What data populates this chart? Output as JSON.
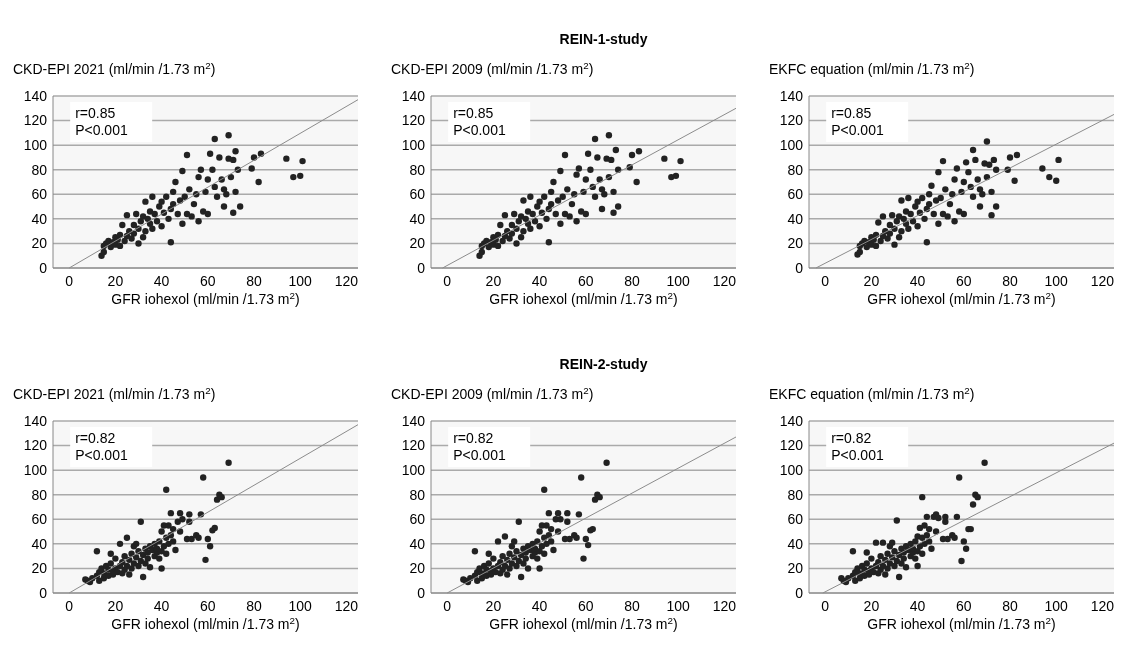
{
  "chart_data": [
    {
      "type": "scatter",
      "ylabel": "CKD-EPI 2021 (ml/min /1.73 m$^{2}$)",
      "xlabel": "GFR iohexol (ml/min /1.73 m$^{2}$)",
      "xlim": [
        -7,
        125
      ],
      "ylim": [
        0,
        140
      ],
      "xticks": [
        0,
        20,
        40,
        60,
        80,
        100,
        120
      ],
      "yticks": [
        0,
        20,
        40,
        60,
        80,
        100,
        120,
        140
      ],
      "grid": "y",
      "annotations": [
        "r=0.85",
        "P<0.001"
      ],
      "series": [
        {
          "type": "scatter",
          "marker": "circle",
          "color": "#222222",
          "x": [
            14,
            15,
            15,
            16,
            17,
            18,
            19,
            20,
            20,
            21,
            22,
            22,
            23,
            24,
            25,
            25,
            26,
            27,
            28,
            28,
            29,
            30,
            30,
            31,
            32,
            32,
            33,
            33,
            34,
            35,
            35,
            36,
            36,
            37,
            38,
            39,
            40,
            40,
            41,
            42,
            43,
            44,
            44,
            45,
            45,
            46,
            47,
            48,
            49,
            49,
            50,
            51,
            51,
            52,
            53,
            54,
            55,
            56,
            56,
            57,
            58,
            59,
            60,
            60,
            61,
            62,
            63,
            63,
            64,
            65,
            66,
            67,
            67,
            68,
            69,
            69,
            70,
            71,
            71,
            72,
            72,
            73,
            74,
            79,
            80,
            82,
            83,
            94,
            97,
            100,
            101
          ],
          "values": [
            10,
            13,
            18,
            20,
            22,
            17,
            21,
            19,
            25,
            23,
            18,
            27,
            35,
            22,
            43,
            26,
            30,
            24,
            35,
            28,
            44,
            32,
            20,
            38,
            25,
            42,
            30,
            54,
            40,
            36,
            46,
            32,
            58,
            44,
            38,
            50,
            34,
            54,
            45,
            58,
            40,
            48,
            21,
            62,
            52,
            70,
            44,
            55,
            36,
            79,
            58,
            44,
            92,
            64,
            42,
            52,
            60,
            74,
            38,
            80,
            46,
            62,
            72,
            44,
            93,
            80,
            66,
            105,
            58,
            90,
            72,
            64,
            50,
            60,
            89,
            108,
            74,
            88,
            45,
            62,
            95,
            80,
            50,
            81,
            90,
            70,
            93,
            89,
            74,
            75,
            87
          ]
        },
        {
          "type": "line",
          "color": "#8c8c8c",
          "x": [
            0,
            125
          ],
          "values": [
            0,
            137
          ]
        }
      ]
    },
    {
      "type": "scatter",
      "title": "REIN-1-study",
      "ylabel": "CKD-EPI 2009 (ml/min /1.73 m$^{2}$)",
      "xlabel": "GFR iohexol (ml/min /1.73 m$^{2}$)",
      "xlim": [
        -7,
        125
      ],
      "ylim": [
        0,
        140
      ],
      "xticks": [
        0,
        20,
        40,
        60,
        80,
        100,
        120
      ],
      "yticks": [
        0,
        20,
        40,
        60,
        80,
        100,
        120,
        140
      ],
      "grid": "y",
      "annotations": [
        "r=0.85",
        "P<0.001"
      ],
      "series": [
        {
          "type": "scatter",
          "marker": "circle",
          "color": "#222222",
          "x": [
            14,
            15,
            15,
            16,
            17,
            18,
            19,
            20,
            20,
            21,
            22,
            22,
            23,
            24,
            25,
            25,
            26,
            27,
            28,
            28,
            29,
            30,
            30,
            31,
            32,
            32,
            33,
            33,
            34,
            35,
            35,
            36,
            36,
            37,
            38,
            39,
            40,
            40,
            41,
            42,
            43,
            44,
            44,
            45,
            45,
            46,
            47,
            48,
            49,
            49,
            50,
            51,
            51,
            52,
            53,
            54,
            55,
            56,
            56,
            57,
            58,
            59,
            60,
            60,
            61,
            62,
            63,
            64,
            64,
            65,
            66,
            67,
            67,
            68,
            69,
            70,
            70,
            71,
            72,
            72,
            73,
            74,
            74,
            79,
            80,
            82,
            83,
            94,
            97,
            99,
            101
          ],
          "values": [
            10,
            13,
            18,
            20,
            22,
            17,
            21,
            19,
            25,
            23,
            18,
            27,
            35,
            22,
            43,
            26,
            30,
            24,
            35,
            28,
            44,
            32,
            20,
            38,
            25,
            42,
            30,
            55,
            40,
            36,
            46,
            32,
            58,
            44,
            38,
            50,
            34,
            54,
            45,
            58,
            40,
            48,
            21,
            62,
            52,
            70,
            44,
            55,
            36,
            79,
            58,
            44,
            92,
            64,
            42,
            52,
            60,
            76,
            38,
            81,
            46,
            62,
            72,
            44,
            93,
            80,
            66,
            105,
            58,
            90,
            72,
            64,
            48,
            60,
            89,
            108,
            74,
            88,
            45,
            62,
            96,
            80,
            50,
            82,
            92,
            70,
            95,
            89,
            74,
            75,
            87
          ]
        },
        {
          "type": "line",
          "color": "#8c8c8c",
          "x": [
            -2,
            125
          ],
          "values": [
            0,
            130
          ]
        }
      ]
    },
    {
      "type": "scatter",
      "ylabel": "EKFC equation (ml/min /1.73 m$^{2}$)",
      "xlabel": "GFR iohexol (ml/min /1.73 m$^{2}$)",
      "xlim": [
        -7,
        125
      ],
      "ylim": [
        0,
        140
      ],
      "xticks": [
        0,
        20,
        40,
        60,
        80,
        100,
        120
      ],
      "yticks": [
        0,
        20,
        40,
        60,
        80,
        100,
        120,
        140
      ],
      "grid": "y",
      "annotations": [
        "r=0.85",
        "P<0.001"
      ],
      "series": [
        {
          "type": "scatter",
          "marker": "circle",
          "color": "#222222",
          "x": [
            14,
            15,
            15,
            16,
            17,
            18,
            19,
            20,
            20,
            21,
            22,
            22,
            23,
            24,
            25,
            25,
            26,
            27,
            28,
            28,
            29,
            30,
            30,
            31,
            32,
            32,
            33,
            33,
            34,
            35,
            35,
            36,
            36,
            37,
            38,
            39,
            40,
            40,
            41,
            42,
            43,
            44,
            44,
            45,
            45,
            46,
            47,
            48,
            49,
            49,
            50,
            51,
            51,
            52,
            53,
            54,
            55,
            56,
            56,
            57,
            58,
            59,
            60,
            60,
            61,
            62,
            63,
            64,
            64,
            65,
            66,
            67,
            67,
            68,
            69,
            70,
            70,
            71,
            72,
            72,
            73,
            74,
            74,
            79,
            80,
            82,
            83,
            94,
            97,
            100,
            101
          ],
          "values": [
            11,
            13,
            18,
            20,
            22,
            17,
            21,
            19,
            25,
            23,
            18,
            27,
            37,
            22,
            42,
            26,
            30,
            24,
            35,
            28,
            43,
            32,
            19,
            38,
            25,
            42,
            30,
            55,
            40,
            36,
            46,
            32,
            57,
            44,
            38,
            50,
            34,
            54,
            45,
            57,
            40,
            48,
            21,
            60,
            52,
            67,
            44,
            55,
            36,
            78,
            57,
            44,
            87,
            64,
            42,
            52,
            60,
            72,
            38,
            81,
            46,
            62,
            70,
            44,
            86,
            78,
            66,
            96,
            58,
            88,
            72,
            64,
            50,
            60,
            85,
            103,
            74,
            84,
            43,
            62,
            88,
            80,
            50,
            80,
            90,
            71,
            92,
            81,
            74,
            71,
            88
          ]
        },
        {
          "type": "line",
          "color": "#8c8c8c",
          "x": [
            -4,
            125
          ],
          "values": [
            0,
            125
          ]
        }
      ]
    },
    {
      "type": "scatter",
      "ylabel": "CKD-EPI 2021 (ml/min /1.73 m$^{2}$)",
      "xlabel": "GFR iohexol (ml/min /1.73 m$^{2}$)",
      "xlim": [
        -7,
        125
      ],
      "ylim": [
        0,
        140
      ],
      "xticks": [
        0,
        20,
        40,
        60,
        80,
        100,
        120
      ],
      "yticks": [
        0,
        20,
        40,
        60,
        80,
        100,
        120,
        140
      ],
      "grid": "y",
      "annotations": [
        "r=0.82",
        "P<0.001"
      ],
      "series": [
        {
          "type": "scatter",
          "marker": "circle",
          "color": "#222222",
          "x": [
            7,
            8,
            9,
            10,
            12,
            12,
            13,
            13,
            14,
            15,
            15,
            16,
            17,
            17,
            18,
            18,
            19,
            19,
            20,
            20,
            21,
            22,
            22,
            23,
            23,
            24,
            24,
            25,
            25,
            26,
            26,
            27,
            27,
            28,
            28,
            29,
            29,
            30,
            30,
            31,
            31,
            32,
            32,
            33,
            33,
            34,
            34,
            35,
            35,
            36,
            37,
            37,
            38,
            38,
            39,
            39,
            40,
            40,
            40,
            41,
            41,
            42,
            42,
            42,
            43,
            43,
            44,
            44,
            45,
            45,
            46,
            47,
            48,
            48,
            49,
            51,
            52,
            52,
            53,
            55,
            56,
            57,
            58,
            59,
            60,
            61,
            62,
            63,
            64,
            65,
            66,
            69
          ],
          "values": [
            11,
            10,
            9,
            12,
            34,
            14,
            17,
            10,
            20,
            12,
            16,
            22,
            14,
            19,
            24,
            32,
            15,
            18,
            20,
            28,
            17,
            22,
            40,
            25,
            16,
            30,
            19,
            45,
            22,
            27,
            15,
            32,
            20,
            24,
            38,
            29,
            40,
            22,
            34,
            26,
            58,
            31,
            13,
            36,
            24,
            33,
            28,
            38,
            21,
            35,
            30,
            40,
            33,
            36,
            42,
            28,
            34,
            20,
            50,
            38,
            55,
            32,
            45,
            84,
            40,
            55,
            47,
            65,
            42,
            52,
            35,
            58,
            65,
            50,
            60,
            44,
            58,
            64,
            44,
            47,
            45,
            64,
            94,
            27,
            44,
            38,
            51,
            53,
            76,
            80,
            78,
            106
          ]
        },
        {
          "type": "line",
          "color": "#8c8c8c",
          "x": [
            0,
            125
          ],
          "values": [
            0,
            137
          ]
        }
      ]
    },
    {
      "type": "scatter",
      "title": "REIN-2-study",
      "ylabel": "CKD-EPI 2009 (ml/min /1.73 m$^{2}$)",
      "xlabel": "GFR iohexol (ml/min /1.73 m$^{2}$)",
      "xlim": [
        -7,
        125
      ],
      "ylim": [
        0,
        140
      ],
      "xticks": [
        0,
        20,
        40,
        60,
        80,
        100,
        120
      ],
      "yticks": [
        0,
        20,
        40,
        60,
        80,
        100,
        120,
        140
      ],
      "grid": "y",
      "annotations": [
        "r=0.82",
        "P<0.001"
      ],
      "series": [
        {
          "type": "scatter",
          "marker": "circle",
          "color": "#222222",
          "x": [
            7,
            8,
            9,
            10,
            12,
            12,
            13,
            13,
            14,
            15,
            15,
            16,
            17,
            17,
            18,
            18,
            19,
            19,
            20,
            20,
            21,
            22,
            22,
            23,
            23,
            24,
            24,
            25,
            25,
            26,
            26,
            27,
            27,
            28,
            28,
            29,
            29,
            30,
            30,
            31,
            31,
            32,
            32,
            33,
            33,
            34,
            34,
            35,
            35,
            36,
            37,
            37,
            38,
            38,
            39,
            39,
            40,
            40,
            40,
            41,
            41,
            42,
            42,
            42,
            43,
            43,
            44,
            44,
            45,
            45,
            46,
            47,
            48,
            48,
            49,
            51,
            52,
            52,
            53,
            55,
            56,
            57,
            58,
            59,
            60,
            61,
            62,
            63,
            64,
            65,
            66,
            69
          ],
          "values": [
            11,
            10,
            9,
            12,
            34,
            14,
            17,
            10,
            20,
            12,
            16,
            22,
            14,
            19,
            24,
            32,
            15,
            18,
            20,
            28,
            17,
            22,
            42,
            25,
            16,
            30,
            19,
            46,
            22,
            27,
            15,
            32,
            20,
            24,
            38,
            29,
            42,
            22,
            34,
            26,
            58,
            31,
            13,
            36,
            24,
            33,
            28,
            38,
            20,
            35,
            30,
            40,
            33,
            36,
            42,
            28,
            34,
            20,
            50,
            38,
            55,
            32,
            45,
            84,
            40,
            55,
            47,
            65,
            42,
            52,
            35,
            60,
            65,
            50,
            60,
            44,
            58,
            65,
            44,
            47,
            45,
            64,
            94,
            28,
            44,
            39,
            51,
            52,
            76,
            80,
            78,
            106
          ]
        },
        {
          "type": "line",
          "color": "#8c8c8c",
          "x": [
            0,
            125
          ],
          "values": [
            0,
            127
          ]
        }
      ]
    },
    {
      "type": "scatter",
      "ylabel": "EKFC equation (ml/min /1.73 m$^{2}$)",
      "xlabel": "GFR iohexol (ml/min /1.73 m$^{2}$)",
      "xlim": [
        -7,
        125
      ],
      "ylim": [
        0,
        140
      ],
      "xticks": [
        0,
        20,
        40,
        60,
        80,
        100,
        120
      ],
      "yticks": [
        0,
        20,
        40,
        60,
        80,
        100,
        120,
        140
      ],
      "grid": "y",
      "annotations": [
        "r=0.82",
        "P<0.001"
      ],
      "series": [
        {
          "type": "scatter",
          "marker": "circle",
          "color": "#222222",
          "x": [
            7,
            8,
            9,
            10,
            12,
            12,
            13,
            13,
            14,
            15,
            15,
            16,
            17,
            17,
            18,
            18,
            19,
            19,
            20,
            20,
            21,
            22,
            22,
            23,
            23,
            24,
            24,
            25,
            25,
            26,
            26,
            27,
            27,
            28,
            28,
            29,
            29,
            30,
            30,
            31,
            31,
            32,
            32,
            33,
            33,
            34,
            34,
            35,
            35,
            36,
            37,
            37,
            38,
            38,
            39,
            39,
            40,
            40,
            40,
            41,
            41,
            42,
            42,
            42,
            43,
            43,
            44,
            44,
            45,
            45,
            46,
            47,
            48,
            48,
            49,
            51,
            52,
            52,
            53,
            55,
            56,
            57,
            58,
            59,
            60,
            61,
            62,
            63,
            64,
            65,
            66,
            69
          ],
          "values": [
            12,
            10,
            9,
            12,
            34,
            14,
            17,
            10,
            20,
            12,
            16,
            22,
            14,
            19,
            24,
            33,
            15,
            18,
            20,
            28,
            17,
            22,
            41,
            25,
            16,
            30,
            19,
            41,
            22,
            27,
            15,
            32,
            20,
            24,
            38,
            29,
            41,
            22,
            34,
            26,
            59,
            31,
            13,
            36,
            24,
            33,
            28,
            38,
            21,
            35,
            30,
            40,
            33,
            36,
            42,
            28,
            34,
            22,
            46,
            38,
            53,
            32,
            45,
            78,
            40,
            55,
            47,
            62,
            42,
            52,
            36,
            62,
            64,
            50,
            61,
            44,
            58,
            62,
            44,
            47,
            45,
            62,
            94,
            26,
            42,
            36,
            52,
            52,
            72,
            80,
            78,
            106
          ]
        },
        {
          "type": "line",
          "color": "#8c8c8c",
          "x": [
            -1,
            125
          ],
          "values": [
            0,
            122
          ]
        }
      ]
    }
  ]
}
